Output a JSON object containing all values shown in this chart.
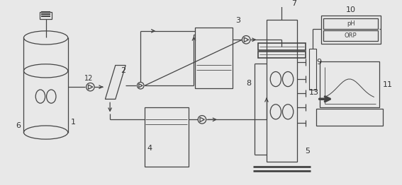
{
  "bg_color": "#e8e8e8",
  "line_color": "#444444",
  "fig_w": 5.67,
  "fig_h": 2.62,
  "dpi": 100
}
